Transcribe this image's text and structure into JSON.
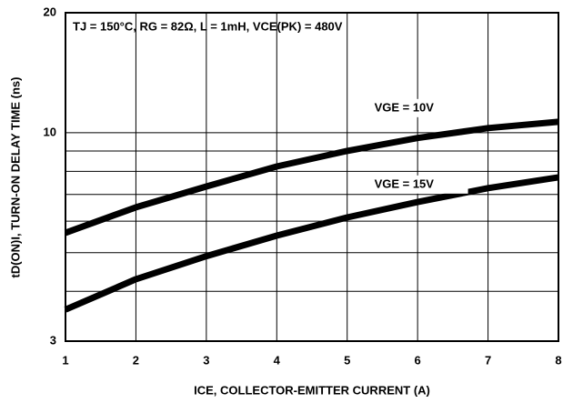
{
  "chart_data": {
    "type": "line",
    "title": "TJ = 150°C, RG = 82Ω, L = 1mH, VCE(PK) = 480V",
    "x_label": "ICE, COLLECTOR-EMITTER CURRENT (A)",
    "y_label": "tD(ON)I, TURN-ON DELAY TIME (ns)",
    "x": [
      1,
      2,
      3,
      4,
      5,
      6,
      7,
      8
    ],
    "series": [
      {
        "name": "VGE = 10V",
        "color": "#000000",
        "values": [
          5.61,
          6.5,
          7.33,
          8.23,
          9.0,
          9.7,
          10.27,
          10.65
        ]
      },
      {
        "name": "VGE = 15V",
        "color": "#000000",
        "values": [
          3.6,
          4.29,
          4.9,
          5.52,
          6.13,
          6.7,
          7.26,
          7.73
        ]
      }
    ],
    "xlim": [
      1,
      8
    ],
    "xticks": [
      1,
      2,
      3,
      4,
      5,
      6,
      7,
      8
    ],
    "ylim": [
      3,
      20
    ],
    "yticks": [
      3,
      10,
      20
    ],
    "yminorticks": [
      4,
      5,
      6,
      7,
      8,
      9
    ],
    "ylog": true,
    "grid": true
  }
}
